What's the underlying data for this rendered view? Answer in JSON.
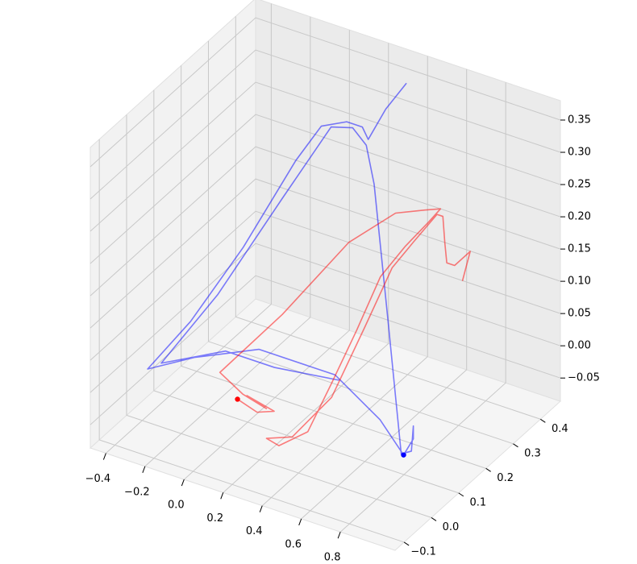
{
  "chart_data": {
    "type": "line3d",
    "xlim": [
      -0.48,
      1.08
    ],
    "ylim": [
      -0.133,
      0.473
    ],
    "zlim": [
      -0.086,
      0.38
    ],
    "xticks": [
      {
        "value": -0.4,
        "label": "−0.4"
      },
      {
        "value": -0.2,
        "label": "−0.2"
      },
      {
        "value": 0,
        "label": "0.0"
      },
      0.2,
      0.4,
      0.6,
      0.8
    ],
    "yticks": [
      {
        "value": -0.1,
        "label": "−0.1"
      },
      {
        "value": 0,
        "label": "0.0"
      },
      0.1,
      0.2,
      0.3,
      0.4
    ],
    "zticks": [
      {
        "value": -0.05,
        "label": "−0.05"
      },
      {
        "value": 0,
        "label": "0.00"
      },
      0.05,
      {
        "value": 0.1,
        "label": "0.10"
      },
      0.15,
      {
        "value": 0.2,
        "label": "0.20"
      },
      0.25,
      {
        "value": 0.3,
        "label": "0.30"
      },
      0.35
    ],
    "grid": true,
    "series": [
      {
        "color": "#0000ff",
        "alpha": 0.5,
        "x": [
          0.38,
          0.33,
          0.31,
          0.21,
          0.13,
          0.0,
          -0.06,
          -0.19,
          -0.32,
          -0.47,
          -0.37,
          -0.11,
          0.28,
          0.58,
          0.84,
          0.89,
          0.89,
          0.88,
          0.8,
          0.62,
          0.41,
          0.3,
          0.23,
          0.12,
          -0.06,
          -0.25,
          -0.47,
          -0.28,
          -0.03,
          0.37
        ],
        "y": [
          0.41,
          0.37,
          0.32,
          0.37,
          0.37,
          0.37,
          0.32,
          0.22,
          0.12,
          0.07,
          0.17,
          0.22,
          0.22,
          0.17,
          0.07,
          0.07,
          0.07,
          0.07,
          0.09,
          0.17,
          0.27,
          0.32,
          0.32,
          0.32,
          0.27,
          0.17,
          0.12,
          0.22,
          0.22,
          0.17
        ],
        "z": [
          0.36,
          0.33,
          0.3,
          0.29,
          0.29,
          0.27,
          0.23,
          0.12,
          0.03,
          -0.04,
          -0.05,
          -0.03,
          -0.03,
          -0.05,
          -0.04,
          -0.01,
          0.01,
          -0.03,
          -0.05,
          0.11,
          0.26,
          0.29,
          0.31,
          0.3,
          0.19,
          0.06,
          -0.05,
          -0.05,
          -0.05,
          -0.01
        ],
        "marker": {
          "x": 0.84,
          "y": 0.07,
          "z": -0.04
        }
      },
      {
        "color": "#ff0000",
        "alpha": 0.5,
        "x": [
          -0.01,
          0.09,
          0.15,
          0.01,
          0.11,
          -0.01,
          -0.24,
          -0.06,
          0.21,
          0.45,
          0.6,
          0.68,
          0.69,
          0.57,
          0.47,
          0.39,
          0.33,
          0.28,
          0.23,
          0.18,
          0.27,
          0.36,
          0.46,
          0.53,
          0.61,
          0.69,
          0.72,
          0.73,
          0.74,
          0.78,
          0.86,
          0.82
        ],
        "y": [
          0.07,
          0.07,
          0.09,
          0.09,
          0.09,
          0.09,
          0.17,
          0.27,
          0.32,
          0.32,
          0.32,
          0.32,
          0.27,
          0.27,
          0.25,
          0.22,
          0.17,
          0.12,
          0.05,
          0.04,
          0.07,
          0.15,
          0.2,
          0.25,
          0.27,
          0.3,
          0.3,
          0.3,
          0.3,
          0.3,
          0.3,
          0.3
        ],
        "z": [
          -0.04,
          -0.05,
          -0.05,
          -0.04,
          -0.05,
          -0.04,
          -0.06,
          0.01,
          0.13,
          0.2,
          0.22,
          0.23,
          0.23,
          0.18,
          0.13,
          0.05,
          -0.02,
          -0.08,
          -0.08,
          -0.07,
          -0.07,
          -0.03,
          0.07,
          0.15,
          0.19,
          0.23,
          0.23,
          0.19,
          0.16,
          0.16,
          0.19,
          0.14
        ],
        "marker": {
          "x": -0.01,
          "y": 0.07,
          "z": -0.04
        }
      }
    ]
  }
}
